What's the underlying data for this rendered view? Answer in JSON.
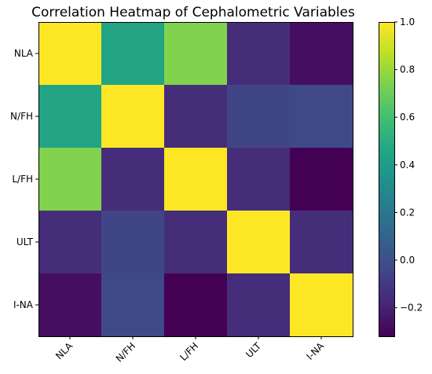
{
  "chart_data": {
    "type": "heatmap",
    "title": "Correlation Heatmap of Cephalometric Variables",
    "xlabel": "",
    "ylabel": "",
    "x_categories": [
      "NLA",
      "N/FH",
      "L/FH",
      "ULT",
      "I-NA"
    ],
    "y_categories": [
      "NLA",
      "N/FH",
      "L/FH",
      "ULT",
      "I-NA"
    ],
    "values": [
      [
        1.0,
        0.45,
        0.75,
        -0.15,
        -0.27
      ],
      [
        0.45,
        1.0,
        -0.15,
        -0.05,
        -0.03
      ],
      [
        0.75,
        -0.15,
        1.0,
        -0.15,
        -0.32
      ],
      [
        -0.15,
        -0.05,
        -0.15,
        1.0,
        -0.15
      ],
      [
        -0.27,
        -0.03,
        -0.32,
        -0.15,
        1.0
      ]
    ],
    "colormap": "viridis",
    "colorbar": {
      "range": [
        -0.32,
        1.0
      ],
      "ticks": [
        1.0,
        0.8,
        0.6,
        0.4,
        0.2,
        0.0,
        -0.2
      ],
      "tick_labels": [
        "1.0",
        "0.8",
        "0.6",
        "0.4",
        "0.2",
        "0.0",
        "−0.2"
      ]
    },
    "grid": false
  }
}
